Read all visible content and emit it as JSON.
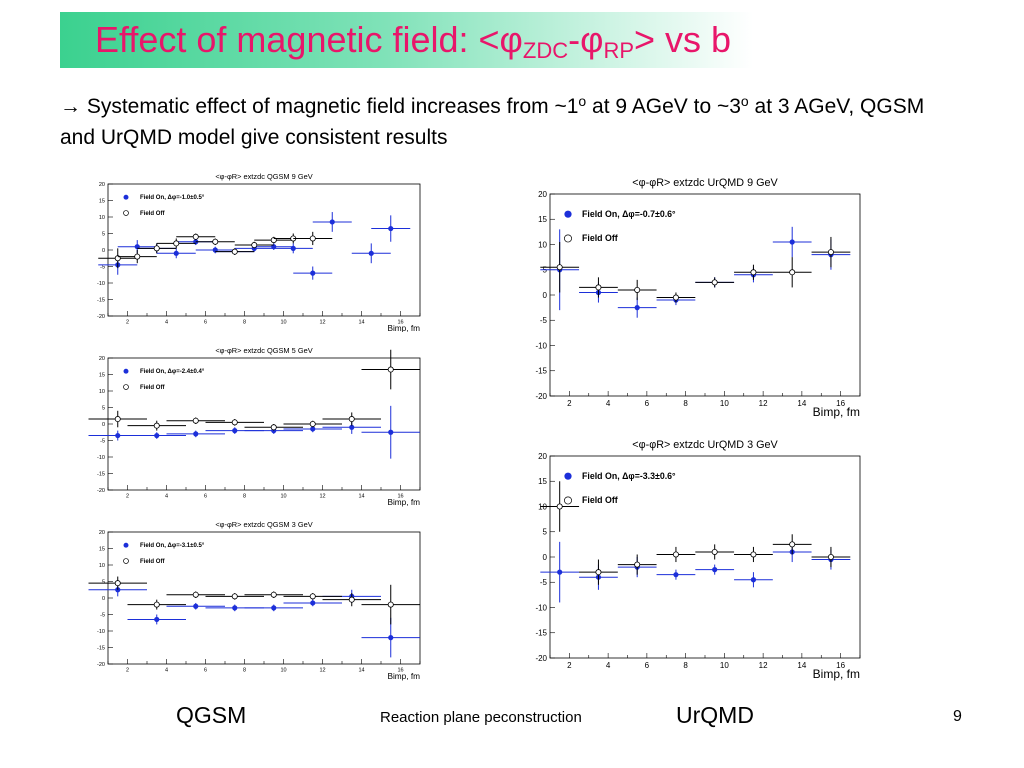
{
  "title": {
    "prefix": "Effect of magnetic field: <φ",
    "sub1": "ZDC",
    "mid": "-φ",
    "sub2": "RP",
    "suffix": "> vs b"
  },
  "bullet": {
    "part1": "→ Systematic effect of magnetic field increases from ~1",
    "sup1": "o",
    "part2": " at 9 AGeV to ~3",
    "sup2": "o",
    "part3": " at 3 AGeV, QGSM and UrQMD model give consistent results"
  },
  "captions": {
    "left": "QGSM",
    "right": "UrQMD"
  },
  "footer": {
    "text": "Reaction plane peconstruction",
    "page": "9"
  },
  "colors": {
    "title": "#e8166a",
    "field_on": "#1c2fd9",
    "field_off": "#000000",
    "band_start": "#3bd18f"
  },
  "chart_data": [
    {
      "type": "scatter",
      "title": "<φ-φR> extzdc QGSM 9 GeV",
      "xlabel": "Bimp, fm",
      "xlim": [
        1,
        17
      ],
      "ylim": [
        -20,
        20
      ],
      "xticks": [
        2,
        4,
        6,
        8,
        10,
        12,
        14,
        16
      ],
      "yticks": [
        -20,
        -15,
        -10,
        -5,
        0,
        5,
        10,
        15,
        20
      ],
      "legend_placement": "top-left",
      "series": [
        {
          "name": "Field On, Δφ=-1.0±0.5°",
          "color": "#1c2fd9",
          "marker": "filled",
          "points": [
            [
              1.5,
              -4.5,
              1,
              3
            ],
            [
              2.5,
              1,
              1,
              2
            ],
            [
              3.5,
              0.5,
              1,
              1.5
            ],
            [
              4.5,
              -1,
              1,
              1.5
            ],
            [
              5.5,
              2.5,
              1,
              1
            ],
            [
              6.5,
              0,
              1,
              1
            ],
            [
              7.5,
              -0.5,
              1,
              1
            ],
            [
              8.5,
              0.5,
              1,
              1
            ],
            [
              9.5,
              1,
              1,
              1
            ],
            [
              10.5,
              0.5,
              1,
              1.5
            ],
            [
              11.5,
              -7,
              1,
              2
            ],
            [
              12.5,
              8.5,
              1,
              3
            ],
            [
              14.5,
              -1,
              1,
              3
            ],
            [
              15.5,
              6.5,
              1,
              4
            ]
          ]
        },
        {
          "name": "Field Off",
          "color": "#000000",
          "marker": "open",
          "points": [
            [
              1.5,
              -2.5,
              1,
              3
            ],
            [
              2.5,
              -2,
              1,
              2
            ],
            [
              3.5,
              0.5,
              1,
              1.5
            ],
            [
              4.5,
              2,
              1,
              1.5
            ],
            [
              5.5,
              4,
              1,
              1
            ],
            [
              6.5,
              2.5,
              1,
              1
            ],
            [
              7.5,
              -0.5,
              1,
              1
            ],
            [
              8.5,
              1.5,
              1,
              1
            ],
            [
              9.5,
              3,
              1,
              1
            ],
            [
              10.5,
              3.5,
              1,
              1.5
            ],
            [
              11.5,
              3.5,
              1,
              2
            ]
          ]
        }
      ]
    },
    {
      "type": "scatter",
      "title": "<φ-φR> extzdc QGSM 5 GeV",
      "xlabel": "Bimp, fm",
      "xlim": [
        1,
        17
      ],
      "ylim": [
        -20,
        20
      ],
      "xticks": [
        2,
        4,
        6,
        8,
        10,
        12,
        14,
        16
      ],
      "yticks": [
        -20,
        -15,
        -10,
        -5,
        0,
        5,
        10,
        15,
        20
      ],
      "legend_placement": "top-left",
      "series": [
        {
          "name": "Field On, Δφ=-2.4±0.4°",
          "color": "#1c2fd9",
          "marker": "filled",
          "points": [
            [
              1.5,
              -3.5,
              1.5,
              1.5
            ],
            [
              3.5,
              -3.5,
              1.5,
              1
            ],
            [
              5.5,
              -3,
              1.5,
              1
            ],
            [
              7.5,
              -2,
              1.5,
              1
            ],
            [
              9.5,
              -2,
              1.5,
              1
            ],
            [
              11.5,
              -1.5,
              1.5,
              1
            ],
            [
              13.5,
              -1,
              1.5,
              2
            ],
            [
              15.5,
              -2.5,
              1.5,
              8
            ]
          ]
        },
        {
          "name": "Field Off",
          "color": "#000000",
          "marker": "open",
          "points": [
            [
              1.5,
              1.5,
              1.5,
              2.5
            ],
            [
              3.5,
              -0.5,
              1.5,
              1.5
            ],
            [
              5.5,
              1,
              1.5,
              1
            ],
            [
              7.5,
              0.5,
              1.5,
              1
            ],
            [
              9.5,
              -1,
              1.5,
              1
            ],
            [
              11.5,
              0,
              1.5,
              1
            ],
            [
              13.5,
              1.5,
              1.5,
              2
            ],
            [
              15.5,
              16.5,
              1.5,
              6
            ]
          ]
        }
      ]
    },
    {
      "type": "scatter",
      "title": "<φ-φR> extzdc QGSM 3 GeV",
      "xlabel": "Bimp, fm",
      "xlim": [
        1,
        17
      ],
      "ylim": [
        -20,
        20
      ],
      "xticks": [
        2,
        4,
        6,
        8,
        10,
        12,
        14,
        16
      ],
      "yticks": [
        -20,
        -15,
        -10,
        -5,
        0,
        5,
        10,
        15,
        20
      ],
      "legend_placement": "top-left",
      "series": [
        {
          "name": "Field On, Δφ=-3.1±0.5°",
          "color": "#1c2fd9",
          "marker": "filled",
          "points": [
            [
              1.5,
              2.5,
              1.5,
              2
            ],
            [
              3.5,
              -6.5,
              1.5,
              1.5
            ],
            [
              5.5,
              -2.5,
              1.5,
              1
            ],
            [
              7.5,
              -3,
              1.5,
              1
            ],
            [
              9.5,
              -3,
              1.5,
              1
            ],
            [
              11.5,
              -1.5,
              1.5,
              1
            ],
            [
              13.5,
              0.5,
              1.5,
              2
            ],
            [
              15.5,
              -12,
              1.5,
              6
            ]
          ]
        },
        {
          "name": "Field Off",
          "color": "#000000",
          "marker": "open",
          "points": [
            [
              1.5,
              4.5,
              1.5,
              2
            ],
            [
              3.5,
              -2,
              1.5,
              1.5
            ],
            [
              5.5,
              1,
              1.5,
              1
            ],
            [
              7.5,
              0.5,
              1.5,
              1
            ],
            [
              9.5,
              1,
              1.5,
              1
            ],
            [
              11.5,
              0.5,
              1.5,
              1
            ],
            [
              13.5,
              -0.5,
              1.5,
              2
            ],
            [
              15.5,
              -2,
              1.5,
              6
            ]
          ]
        }
      ]
    },
    {
      "type": "scatter",
      "title": "<φ-φR> extzdc UrQMD 9 GeV",
      "xlabel": "Bimp, fm",
      "xlim": [
        1,
        17
      ],
      "ylim": [
        -20,
        20
      ],
      "xticks": [
        2,
        4,
        6,
        8,
        10,
        12,
        14,
        16
      ],
      "yticks": [
        -20,
        -15,
        -10,
        -5,
        0,
        5,
        10,
        15,
        20
      ],
      "legend_placement": "top-left",
      "series": [
        {
          "name": "Field On, Δφ=-0.7±0.6°",
          "color": "#1c2fd9",
          "marker": "filled",
          "points": [
            [
              1.5,
              5,
              1,
              8
            ],
            [
              3.5,
              0.5,
              1,
              2
            ],
            [
              5.5,
              -2.5,
              1,
              2
            ],
            [
              7.5,
              -1,
              1,
              1
            ],
            [
              9.5,
              2.5,
              1,
              1
            ],
            [
              11.5,
              4,
              1,
              1.5
            ],
            [
              13.5,
              10.5,
              1,
              3
            ],
            [
              15.5,
              8,
              1,
              3
            ]
          ]
        },
        {
          "name": "Field Off",
          "color": "#000000",
          "marker": "open",
          "points": [
            [
              1.5,
              5.5,
              1,
              5
            ],
            [
              3.5,
              1.5,
              1,
              2
            ],
            [
              5.5,
              1,
              1,
              2
            ],
            [
              7.5,
              -0.5,
              1,
              1
            ],
            [
              9.5,
              2.5,
              1,
              1
            ],
            [
              11.5,
              4.5,
              1,
              1.5
            ],
            [
              13.5,
              4.5,
              1,
              3
            ],
            [
              15.5,
              8.5,
              1,
              3
            ]
          ]
        }
      ]
    },
    {
      "type": "scatter",
      "title": "<φ-φR> extzdc UrQMD 3 GeV",
      "xlabel": "Bimp, fm",
      "xlim": [
        1,
        17
      ],
      "ylim": [
        -20,
        20
      ],
      "xticks": [
        2,
        4,
        6,
        8,
        10,
        12,
        14,
        16
      ],
      "yticks": [
        -20,
        -15,
        -10,
        -5,
        0,
        5,
        10,
        15,
        20
      ],
      "legend_placement": "top-left",
      "series": [
        {
          "name": "Field On, Δφ=-3.3±0.6°",
          "color": "#1c2fd9",
          "marker": "filled",
          "points": [
            [
              1.5,
              -3,
              1,
              6
            ],
            [
              3.5,
              -4,
              1,
              2.5
            ],
            [
              5.5,
              -2,
              1,
              2
            ],
            [
              7.5,
              -3.5,
              1,
              1
            ],
            [
              9.5,
              -2.5,
              1,
              1
            ],
            [
              11.5,
              -4.5,
              1,
              1.5
            ],
            [
              13.5,
              1,
              1,
              2
            ],
            [
              15.5,
              -0.5,
              1,
              2
            ]
          ]
        },
        {
          "name": "Field Off",
          "color": "#000000",
          "marker": "open",
          "points": [
            [
              1.5,
              10,
              1,
              5
            ],
            [
              3.5,
              -3,
              1,
              2.5
            ],
            [
              5.5,
              -1.5,
              1,
              2
            ],
            [
              7.5,
              0.5,
              1,
              1.5
            ],
            [
              9.5,
              1,
              1,
              1.5
            ],
            [
              11.5,
              0.5,
              1,
              1.5
            ],
            [
              13.5,
              2.5,
              1,
              2
            ],
            [
              15.5,
              0,
              1,
              2
            ]
          ]
        }
      ]
    }
  ]
}
